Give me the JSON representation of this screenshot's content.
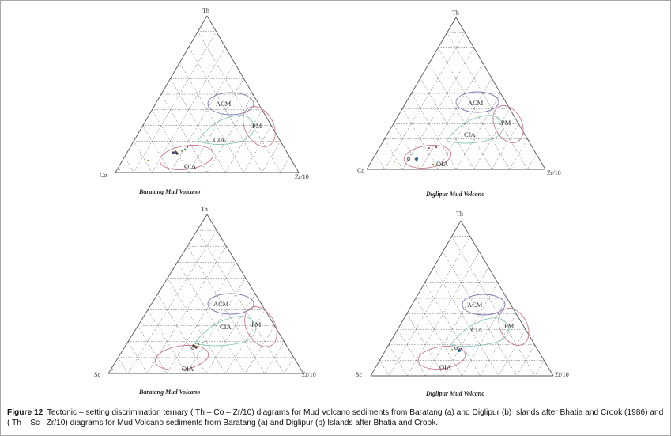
{
  "diagrams": [
    {
      "id": "a1",
      "apex_top": "Th",
      "apex_left": "Co",
      "apex_right": "Zr/10",
      "subtitle": "Baratang Mud Volcano",
      "fields": {
        "acm": "ACM",
        "pm": "PM",
        "cia": "CIA",
        "oia": "OIA"
      }
    },
    {
      "id": "b1",
      "apex_top": "Th",
      "apex_left": "Co",
      "apex_right": "Zr/10",
      "subtitle": "Diglipur Mud Volcano",
      "fields": {
        "acm": "ACM",
        "pm": "PM",
        "cia": "CIA",
        "oia": "OIA"
      }
    },
    {
      "id": "a2",
      "apex_top": "Th",
      "apex_left": "Sc",
      "apex_right": "Zr/10",
      "subtitle": "Baratang Mud Volcano",
      "fields": {
        "acm": "ACM",
        "pm": "PM",
        "cia": "CIA",
        "oia": "OIA"
      }
    },
    {
      "id": "b2",
      "apex_top": "Th",
      "apex_left": "Sc",
      "apex_right": "Zr/10",
      "subtitle": "Diglipur Mud Volcano",
      "fields": {
        "acm": "ACM",
        "pm": "PM",
        "cia": "CIA",
        "oia": "OIA"
      }
    }
  ],
  "caption": {
    "label": "Figure 12",
    "text": "Tectonic – setting discrimination ternary ( Th – Co – Zr/10) diagrams for Mud Volcano sediments from Baratang (a) and Diglipur (b) Islands after Bhatia and Crook (1986) and  ( Th – Sc– Zr/10) diagrams for Mud Volcano sediments from Baratang (a) and Diglipur (b) Islands after Bhatia and Crook."
  },
  "colors": {
    "acm": "#7a7ab5",
    "pm": "#c77a86",
    "cia": "#7bbfb6",
    "oia": "#c77a86",
    "grid": "#555555"
  }
}
